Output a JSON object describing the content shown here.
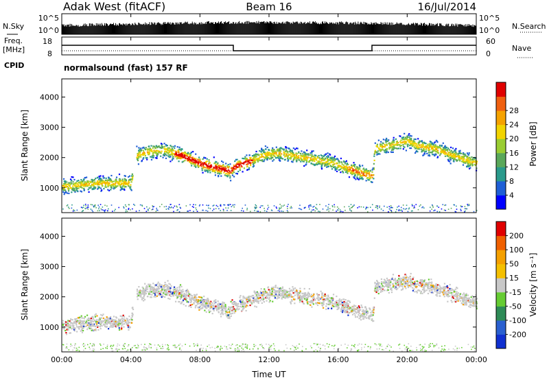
{
  "header": {
    "station": "Adak West (fitACF)",
    "beam": "Beam 16",
    "date": "16/Jul/2014"
  },
  "noise_panel": {
    "left_label": "N.Sky",
    "right_label": "N.Search",
    "ticks_left": [
      "10^5",
      "10^0"
    ],
    "ticks_right": [
      "10^5",
      "10^0"
    ]
  },
  "freq_panel": {
    "left_label_line1": "Freq.",
    "left_label_line2": "[MHz]",
    "right_label": "Nave",
    "ticks_left": [
      "18",
      "8"
    ],
    "ticks_right": [
      "60",
      "0"
    ]
  },
  "cpid_panel": {
    "label": "CPID",
    "text": "normalsound (fast) 157 RF"
  },
  "chart_data": [
    {
      "type": "heatmap",
      "title": "Power",
      "ylabel": "Slant Range [km]",
      "ylim": [
        180,
        4600
      ],
      "y_ticks": [
        "1000",
        "2000",
        "3000",
        "4000"
      ],
      "colorbar": {
        "label": "Power [dB]",
        "ticks": [
          "4",
          "8",
          "12",
          "16",
          "20",
          "24",
          "28"
        ],
        "colors": [
          "#0000ff",
          "#1f5fd6",
          "#2a9a8c",
          "#5aa85a",
          "#9acd32",
          "#f2d400",
          "#f5a200",
          "#f06010",
          "#e00000"
        ]
      },
      "echo_band_ridge_km": [
        [
          0.0,
          1050
        ],
        [
          0.5,
          1050
        ],
        [
          1.0,
          1100
        ],
        [
          2.0,
          1150
        ],
        [
          3.0,
          1150
        ],
        [
          4.0,
          1150
        ],
        [
          4.2,
          2050
        ],
        [
          5.0,
          2200
        ],
        [
          6.0,
          2250
        ],
        [
          7.0,
          2050
        ],
        [
          8.0,
          1800
        ],
        [
          9.0,
          1650
        ],
        [
          9.7,
          1550
        ],
        [
          10.0,
          1700
        ],
        [
          11.0,
          1900
        ],
        [
          11.8,
          2100
        ],
        [
          12.5,
          2150
        ],
        [
          13.5,
          2050
        ],
        [
          14.5,
          1950
        ],
        [
          15.5,
          1850
        ],
        [
          16.5,
          1650
        ],
        [
          17.5,
          1450
        ],
        [
          18.0,
          1400
        ],
        [
          18.1,
          2300
        ],
        [
          19.0,
          2400
        ],
        [
          20.0,
          2550
        ],
        [
          20.5,
          2400
        ],
        [
          21.5,
          2300
        ],
        [
          22.5,
          2100
        ],
        [
          23.5,
          1900
        ],
        [
          24.0,
          1800
        ]
      ]
    },
    {
      "type": "heatmap",
      "title": "Velocity",
      "ylabel": "Slant Range [km]",
      "ylim": [
        180,
        4600
      ],
      "y_ticks": [
        "1000",
        "2000",
        "3000",
        "4000"
      ],
      "colorbar": {
        "label": "Velocity [m s⁻¹]",
        "ticks": [
          "200",
          "100",
          "50",
          "15",
          "-15",
          "-50",
          "-100",
          "-200"
        ],
        "colors": [
          "#1030d0",
          "#2a60d0",
          "#2e8b57",
          "#66cc33",
          "#c8c8c8",
          "#f5c000",
          "#f5a000",
          "#f06000",
          "#e00000"
        ]
      }
    }
  ],
  "x_axis": {
    "label": "Time UT",
    "ticks": [
      "00:00",
      "04:00",
      "08:00",
      "12:00",
      "16:00",
      "20:00",
      "00:00"
    ]
  }
}
